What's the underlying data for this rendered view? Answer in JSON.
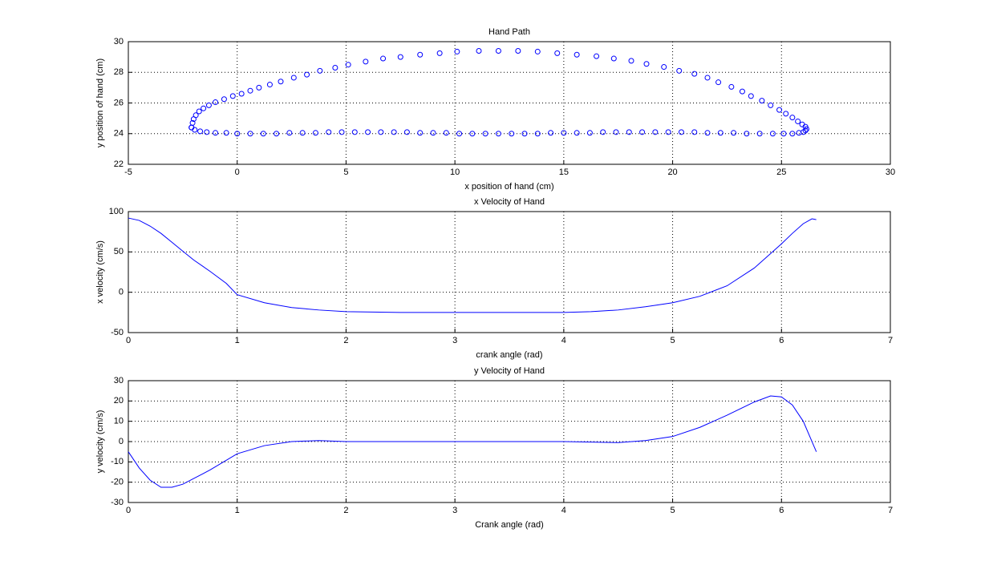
{
  "chart_data": [
    {
      "type": "scatter",
      "title": "Hand Path",
      "xlabel": "x position of hand (cm)",
      "ylabel": "y position of hand (cm)",
      "color": "#0000ff",
      "grid": true,
      "xlim": [
        -5,
        30
      ],
      "xticks": [
        -5,
        0,
        5,
        10,
        15,
        20,
        25,
        30
      ],
      "ylim": [
        22,
        30
      ],
      "yticks": [
        22,
        24,
        26,
        28,
        30
      ],
      "x": [
        -2.1,
        -2.05,
        -2,
        -1.9,
        -1.75,
        -1.55,
        -1.3,
        -1.0,
        -0.6,
        -0.2,
        0.2,
        0.6,
        1.0,
        1.5,
        2.0,
        2.6,
        3.2,
        3.8,
        4.5,
        5.1,
        5.9,
        6.7,
        7.5,
        8.4,
        9.3,
        10.1,
        11.1,
        12.0,
        12.9,
        13.8,
        14.7,
        15.6,
        16.5,
        17.3,
        18.1,
        18.8,
        19.6,
        20.3,
        21.0,
        21.6,
        22.1,
        22.7,
        23.2,
        23.6,
        24.1,
        24.5,
        24.9,
        25.2,
        25.5,
        25.75,
        25.95,
        26.1,
        26.15,
        26.1,
        26.0,
        25.8,
        25.5,
        25.1,
        24.6,
        24.0,
        23.4,
        22.8,
        22.2,
        21.6,
        21.0,
        20.4,
        19.8,
        19.2,
        18.6,
        18.0,
        17.4,
        16.8,
        16.2,
        15.6,
        15.0,
        14.4,
        13.8,
        13.2,
        12.6,
        12.0,
        11.4,
        10.8,
        10.2,
        9.6,
        9.0,
        8.4,
        7.8,
        7.2,
        6.6,
        6.0,
        5.4,
        4.8,
        4.2,
        3.6,
        3.0,
        2.4,
        1.8,
        1.2,
        0.6,
        0.0,
        -0.5,
        -1.0,
        -1.4,
        -1.7,
        -1.95,
        -2.1
      ],
      "values": [
        24.4,
        24.7,
        24.95,
        25.2,
        25.45,
        25.65,
        25.85,
        26.05,
        26.25,
        26.45,
        26.6,
        26.8,
        27.0,
        27.2,
        27.4,
        27.65,
        27.85,
        28.1,
        28.3,
        28.5,
        28.7,
        28.9,
        29.0,
        29.15,
        29.25,
        29.35,
        29.4,
        29.4,
        29.4,
        29.35,
        29.25,
        29.15,
        29.05,
        28.9,
        28.75,
        28.55,
        28.35,
        28.1,
        27.9,
        27.65,
        27.35,
        27.05,
        26.75,
        26.45,
        26.15,
        25.85,
        25.55,
        25.3,
        25.05,
        24.8,
        24.6,
        24.45,
        24.3,
        24.2,
        24.1,
        24.05,
        24.0,
        24.0,
        24.0,
        24.0,
        24.0,
        24.05,
        24.05,
        24.05,
        24.1,
        24.1,
        24.1,
        24.1,
        24.1,
        24.1,
        24.1,
        24.1,
        24.05,
        24.05,
        24.05,
        24.05,
        24.0,
        24.0,
        24.0,
        24.0,
        24.0,
        24.0,
        24.0,
        24.05,
        24.05,
        24.05,
        24.1,
        24.1,
        24.1,
        24.1,
        24.1,
        24.1,
        24.1,
        24.05,
        24.05,
        24.05,
        24.0,
        24.0,
        24.0,
        24.0,
        24.05,
        24.05,
        24.1,
        24.15,
        24.25,
        24.4
      ]
    },
    {
      "type": "line",
      "title": "x Velocity of Hand",
      "xlabel": "crank angle (rad)",
      "ylabel": "x velocity (cm/s)",
      "color": "#0000ff",
      "grid": true,
      "xlim": [
        0,
        7
      ],
      "xticks": [
        0,
        1,
        2,
        3,
        4,
        5,
        6,
        7
      ],
      "ylim": [
        -50,
        100
      ],
      "yticks": [
        -50,
        0,
        50,
        100
      ],
      "x": [
        0,
        0.1,
        0.2,
        0.3,
        0.4,
        0.5,
        0.6,
        0.75,
        0.9,
        1.0,
        1.25,
        1.5,
        1.75,
        2.0,
        2.5,
        3.0,
        3.5,
        4.0,
        4.25,
        4.5,
        4.75,
        5.0,
        5.25,
        5.5,
        5.75,
        5.9,
        6.0,
        6.1,
        6.2,
        6.28,
        6.32
      ],
      "values": [
        92,
        89,
        82,
        73,
        62,
        51,
        40,
        26,
        11,
        -3,
        -13,
        -19,
        -22,
        -24,
        -25,
        -25,
        -25,
        -25,
        -24,
        -22,
        -18,
        -13,
        -5,
        8,
        30,
        48,
        60,
        73,
        85,
        91,
        90
      ]
    },
    {
      "type": "line",
      "title": "y Velocity of Hand",
      "xlabel": "Crank angle (rad)",
      "ylabel": "y velocity (cm/s)",
      "color": "#0000ff",
      "grid": true,
      "xlim": [
        0,
        7
      ],
      "xticks": [
        0,
        1,
        2,
        3,
        4,
        5,
        6,
        7
      ],
      "ylim": [
        -30,
        30
      ],
      "yticks": [
        -30,
        -20,
        -10,
        0,
        10,
        20,
        30
      ],
      "x": [
        0,
        0.1,
        0.2,
        0.3,
        0.4,
        0.5,
        0.75,
        1.0,
        1.25,
        1.5,
        1.75,
        2.0,
        3.0,
        4.0,
        4.5,
        4.75,
        5.0,
        5.25,
        5.5,
        5.75,
        5.9,
        6.0,
        6.1,
        6.2,
        6.32
      ],
      "values": [
        -5,
        -13,
        -19,
        -22.5,
        -22.5,
        -21,
        -14,
        -6,
        -2,
        0,
        0.5,
        0,
        0,
        0,
        -0.5,
        0.5,
        2.5,
        7,
        13,
        19.5,
        22.5,
        22,
        18,
        10,
        -5
      ]
    }
  ]
}
